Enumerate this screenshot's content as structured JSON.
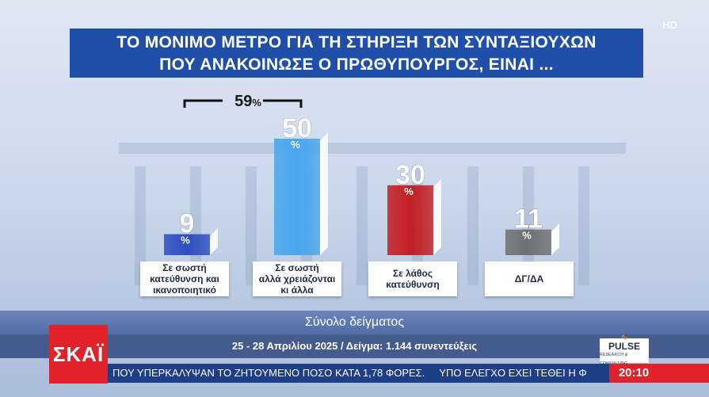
{
  "title": {
    "line1": "ΤΟ ΜΟΝΙΜΟ ΜΕΤΡΟ ΓΙΑ ΤΗ ΣΤΗΡΙΞΗ ΤΩΝ ΣΥΝΤΑΞΙΟΥΧΩΝ",
    "line2": "ΠΟΥ ΑΝΑΚΟΙΝΩΣΕ Ο ΠΡΩΘΥΠΟΥΡΓΟΣ, ΕΙΝΑΙ ..."
  },
  "hd_label": "HD",
  "chart_data": {
    "type": "bar",
    "categories": [
      "Σε σωστή κατεύθυνση και ικανοποιητικό",
      "Σε σωστή αλλά χρειάζονται κι άλλα",
      "Σε λάθος κατεύθυνση",
      "ΔΓ/ΔΑ"
    ],
    "values": [
      9,
      50,
      30,
      11
    ],
    "value_labels": [
      "9",
      "50",
      "30",
      "11"
    ],
    "unit": "%",
    "colors": [
      "#2e4fc0",
      "#4aa6ee",
      "#c21f24",
      "#6f7072"
    ],
    "bracket": {
      "label": "59",
      "unit": "%",
      "spans": [
        0,
        1
      ]
    },
    "ylim": [
      0,
      50
    ]
  },
  "categories_display": [
    [
      "Σε σωστή",
      "κατεύθυνση και",
      "ικανοποιητικό"
    ],
    [
      "Σε σωστή",
      "αλλά χρειάζονται",
      "κι άλλα"
    ],
    [
      "Σε λάθος",
      "κατεύθυνση"
    ],
    [
      "ΔΓ/ΔΑ"
    ]
  ],
  "footer": {
    "sample_label": "Σύνολο δείγματος",
    "survey_info": "25 - 28 Απριλίου 2025 / Δείγμα: 1.144 συνεντεύξεις"
  },
  "branding": {
    "channel_logo": "ΣΚΑΪ",
    "pollster_logo": "PULSE",
    "pollster_sub": "RESEARCH & CONSULTING"
  },
  "ticker": {
    "item1": "ΠΟΥ ΥΠΕΡΚΑΛΥΨΑΝ ΤΟ ΖΗΤΟΥΜΕΝΟ ΠΟΣΟ ΚΑΤΑ 1,78 ΦΟΡΕΣ.",
    "item2": "ΥΠΟ ΕΛΕΓΧΟ ΕΧΕΙ ΤΕΘΕΙ Η Φ",
    "clock": "20:10"
  }
}
